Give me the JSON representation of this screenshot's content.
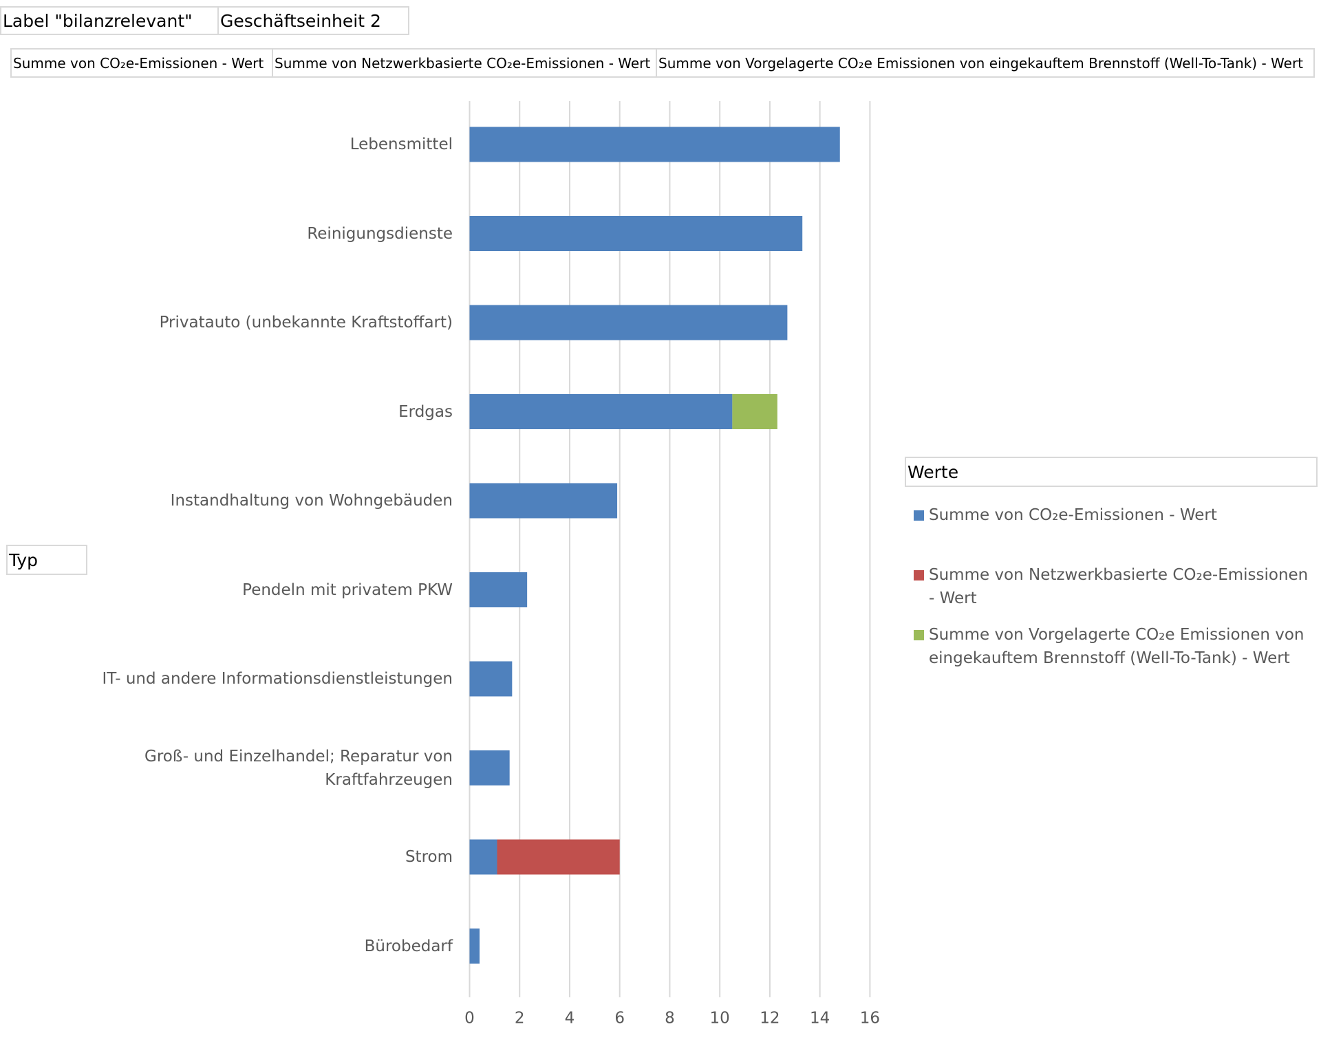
{
  "chart_data": {
    "type": "stacked-barh",
    "report_filters": [
      "Label \"bilanzrelevant\"",
      "Geschäftseinheit 2"
    ],
    "axis_field": "Typ",
    "legend_field": "Werte",
    "categories": [
      "Lebensmittel",
      "Reinigungsdienste",
      "Privatauto (unbekannte Kraftstoffart)",
      "Erdgas",
      "Instandhaltung von Wohngebäuden",
      "Pendeln mit privatem PKW",
      "IT- und andere Informationsdienstleistungen",
      "Groß- und Einzelhandel; Reparatur von Kraftfahrzeugen",
      "Strom",
      "Bürobedarf"
    ],
    "series": [
      {
        "name": "Summe von CO₂e-Emissionen - Wert",
        "color": "#4f81bd",
        "values": [
          14.8,
          13.3,
          12.7,
          10.5,
          5.9,
          2.3,
          1.7,
          1.6,
          1.1,
          0.4
        ]
      },
      {
        "name": "Summe von Netzwerkbasierte CO₂e-Emissionen - Wert",
        "color": "#c0504d",
        "values": [
          null,
          null,
          null,
          null,
          null,
          null,
          null,
          null,
          4.9,
          null
        ]
      },
      {
        "name": "Summe von Vorgelagerte CO₂e Emissionen von eingekauftem Brennstoff (Well-To-Tank) - Wert",
        "color": "#9bbb59",
        "values": [
          null,
          null,
          null,
          1.8,
          null,
          null,
          null,
          null,
          null,
          null
        ]
      }
    ],
    "xlim": [
      0,
      16
    ],
    "xticks": [
      0,
      2,
      4,
      6,
      8,
      10,
      12,
      14,
      16
    ],
    "grid": true
  }
}
